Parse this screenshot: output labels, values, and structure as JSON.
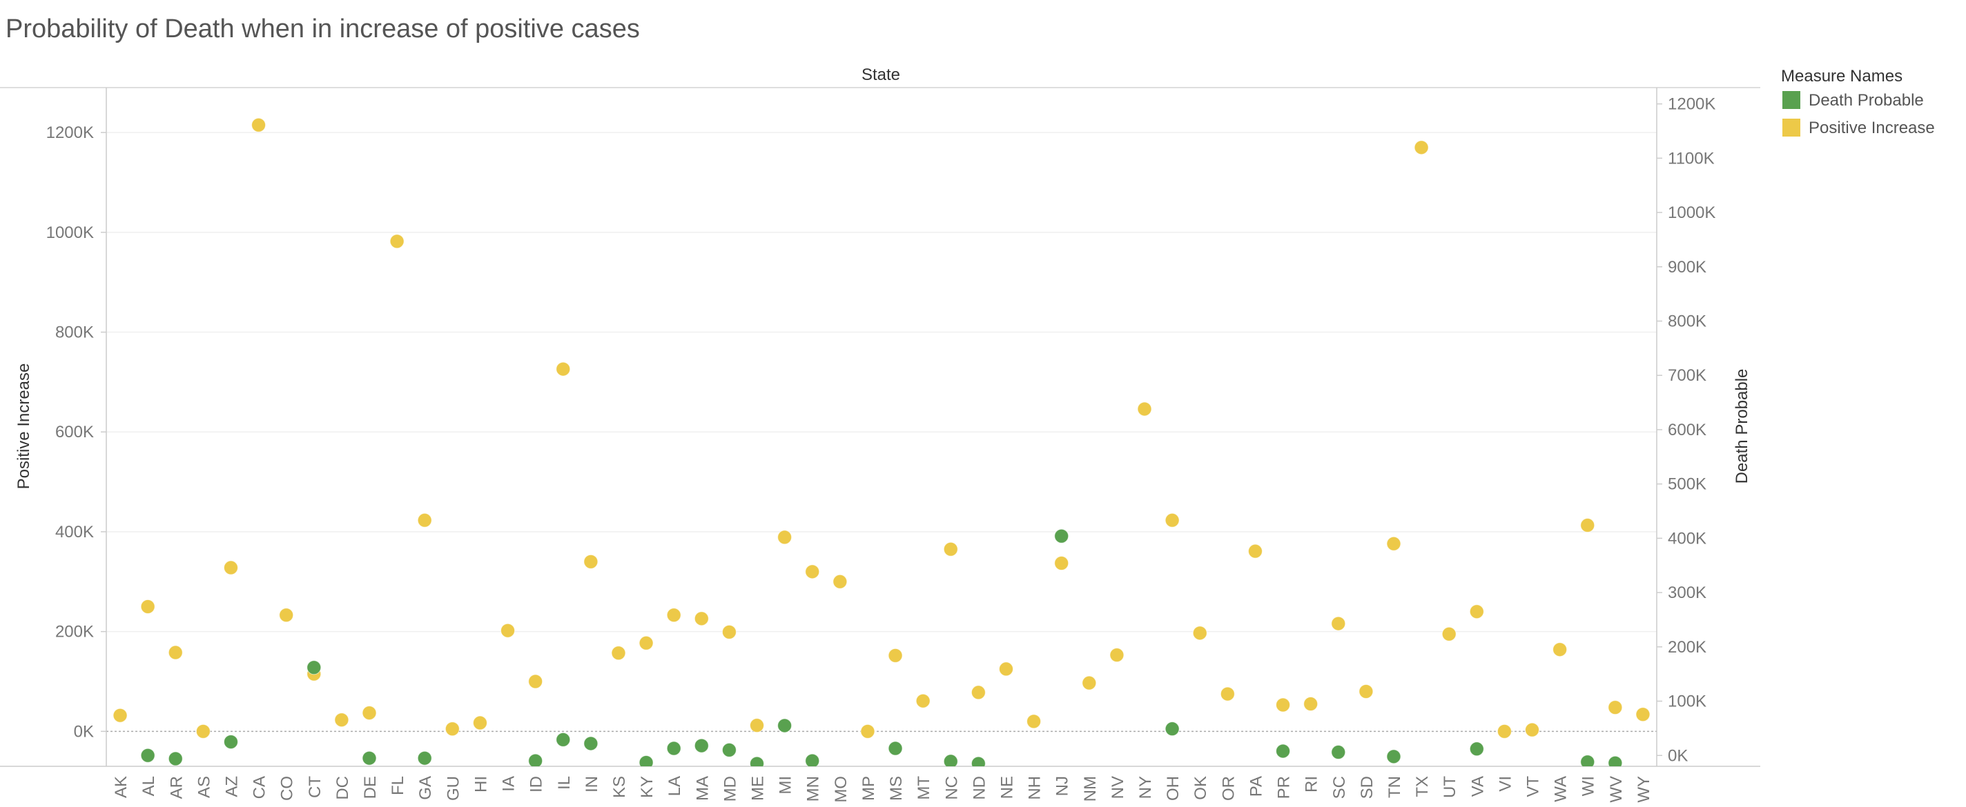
{
  "chart_data": {
    "type": "scatter",
    "title": "Probability of Death when in increase of positive cases",
    "column_header": "State",
    "categories": [
      "AK",
      "AL",
      "AR",
      "AS",
      "AZ",
      "CA",
      "CO",
      "CT",
      "DC",
      "DE",
      "FL",
      "GA",
      "GU",
      "HI",
      "IA",
      "ID",
      "IL",
      "IN",
      "KS",
      "KY",
      "LA",
      "MA",
      "MD",
      "ME",
      "MI",
      "MN",
      "MO",
      "MP",
      "MS",
      "MT",
      "NC",
      "ND",
      "NE",
      "NH",
      "NJ",
      "NM",
      "NV",
      "NY",
      "OH",
      "OK",
      "OR",
      "PA",
      "PR",
      "RI",
      "SC",
      "SD",
      "TN",
      "TX",
      "UT",
      "VA",
      "VI",
      "VT",
      "WA",
      "WI",
      "WV",
      "WY"
    ],
    "y_left": {
      "label": "Positive Increase",
      "ticks": [
        0,
        200000,
        400000,
        600000,
        800000,
        1000000,
        1200000
      ],
      "tick_labels": [
        "0K",
        "200K",
        "400K",
        "600K",
        "800K",
        "1000K",
        "1200K"
      ],
      "range": [
        -70000,
        1290000
      ]
    },
    "y_right": {
      "label": "Death Probable",
      "ticks": [
        0,
        100000,
        200000,
        300000,
        400000,
        500000,
        600000,
        700000,
        800000,
        900000,
        1000000,
        1100000,
        1200000
      ],
      "tick_labels": [
        "0K",
        "100K",
        "200K",
        "300K",
        "400K",
        "500K",
        "600K",
        "700K",
        "800K",
        "900K",
        "1000K",
        "1100K",
        "1200K"
      ],
      "range": [
        -20000,
        1230000
      ]
    },
    "series": [
      {
        "name": "Positive Increase",
        "axis": "left",
        "color": "#EDC948",
        "values": [
          32000,
          250000,
          158000,
          0,
          328000,
          1215000,
          233000,
          115000,
          23000,
          37000,
          982000,
          423000,
          5000,
          17000,
          202000,
          100000,
          726000,
          340000,
          157000,
          177000,
          233000,
          226000,
          199000,
          12000,
          389000,
          320000,
          300000,
          0,
          152000,
          61000,
          365000,
          78000,
          125000,
          20000,
          337000,
          97000,
          153000,
          646000,
          423000,
          197000,
          75000,
          361000,
          53000,
          55000,
          216000,
          80000,
          376000,
          1170000,
          195000,
          240000,
          0,
          3000,
          164000,
          413000,
          48000,
          34000
        ]
      },
      {
        "name": "Death Probable",
        "axis": "right",
        "color": "#59A14F",
        "values": [
          null,
          0,
          -6000,
          null,
          25000,
          null,
          null,
          162000,
          null,
          -5000,
          null,
          -5000,
          null,
          null,
          null,
          -10000,
          29000,
          22000,
          null,
          -13000,
          13000,
          18000,
          10000,
          -15000,
          55000,
          -10000,
          null,
          null,
          13000,
          null,
          -11000,
          -15000,
          null,
          null,
          404000,
          null,
          null,
          null,
          49000,
          null,
          null,
          null,
          8000,
          null,
          6000,
          null,
          -2000,
          null,
          null,
          12000,
          null,
          null,
          null,
          -12000,
          -14000,
          null
        ]
      }
    ],
    "legend": {
      "title": "Measure Names",
      "position": "right",
      "items": [
        {
          "label": "Death Probable",
          "color": "#59A14F"
        },
        {
          "label": "Positive Increase",
          "color": "#EDC948"
        }
      ]
    },
    "grid": true
  }
}
